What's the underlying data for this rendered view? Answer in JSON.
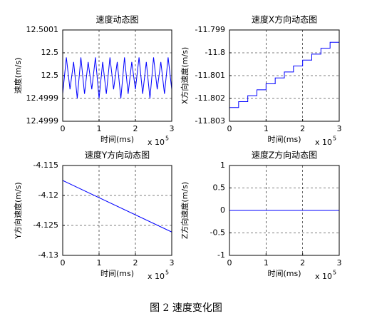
{
  "chart_data": [
    {
      "type": "line",
      "title": "速度动态图",
      "x_label": "时间(ms)",
      "y_label": "速度(m/s)",
      "x_scale_label": "x 10",
      "x_scale_exp": "5",
      "xlim": [
        0,
        3
      ],
      "xticks": [
        0,
        1,
        2,
        3
      ],
      "ylim": [
        12.4999,
        12.5001
      ],
      "yticks": [
        {
          "value": 12.4999,
          "label": "12.4999"
        },
        {
          "value": 12.49995,
          "label": "12.4999"
        },
        {
          "value": 12.5,
          "label": "12.5"
        },
        {
          "value": 12.50005,
          "label": "12.5"
        },
        12.5001
      ],
      "grid": true,
      "series": [
        {
          "color": "#0000ff",
          "x": [
            0,
            0.1,
            0.2,
            0.3,
            0.4,
            0.5,
            0.6,
            0.7,
            0.8,
            0.9,
            1,
            1.1,
            1.2,
            1.3,
            1.4,
            1.5,
            1.6,
            1.7,
            1.8,
            1.9,
            2,
            2.1,
            2.2,
            2.3,
            2.4,
            2.5,
            2.6,
            2.7,
            2.8,
            2.9,
            3
          ],
          "values": [
            12.49996,
            12.50004,
            12.49997,
            12.50003,
            12.49995,
            12.50004,
            12.49996,
            12.50003,
            12.49997,
            12.50004,
            12.49995,
            12.50003,
            12.49996,
            12.50004,
            12.49997,
            12.50003,
            12.49995,
            12.50004,
            12.49996,
            12.50003,
            12.49997,
            12.50004,
            12.49996,
            12.50003,
            12.49995,
            12.50004,
            12.49997,
            12.50003,
            12.49996,
            12.50004,
            12.49997
          ]
        }
      ]
    },
    {
      "type": "line",
      "title": "速度X方向动态图",
      "x_label": "时间(ms)",
      "y_label": "X方向速度(m/s)",
      "x_scale_label": "x 10",
      "x_scale_exp": "5",
      "xlim": [
        0,
        3
      ],
      "xticks": [
        0,
        1,
        2,
        3
      ],
      "ylim": [
        -11.803,
        -11.799
      ],
      "yticks": [
        -11.803,
        -11.802,
        -11.801,
        -11.8,
        -11.799
      ],
      "grid": true,
      "series": [
        {
          "color": "#0000ff",
          "x": [
            0,
            0.25,
            0.25,
            0.5,
            0.5,
            0.75,
            0.75,
            1,
            1,
            1.25,
            1.25,
            1.5,
            1.5,
            1.75,
            1.75,
            2,
            2,
            2.25,
            2.25,
            2.5,
            2.5,
            2.75,
            2.75,
            3
          ],
          "values": [
            -11.8024,
            -11.8024,
            -11.80214,
            -11.80214,
            -11.80188,
            -11.80188,
            -11.80162,
            -11.80162,
            -11.80136,
            -11.80136,
            -11.8011,
            -11.8011,
            -11.80084,
            -11.80084,
            -11.80058,
            -11.80058,
            -11.80032,
            -11.80032,
            -11.80006,
            -11.80006,
            -11.7998,
            -11.7998,
            -11.79954,
            -11.79954
          ]
        }
      ]
    },
    {
      "type": "line",
      "title": "速度Y方向动态图",
      "x_label": "时间(ms)",
      "y_label": "Y方向速度(m/s)",
      "x_scale_label": "x 10",
      "x_scale_exp": "5",
      "xlim": [
        0,
        3
      ],
      "xticks": [
        0,
        1,
        2,
        3
      ],
      "ylim": [
        -4.13,
        -4.115
      ],
      "yticks": [
        -4.13,
        -4.125,
        -4.12,
        -4.115
      ],
      "grid": true,
      "series": [
        {
          "color": "#0000ff",
          "x": [
            0,
            3
          ],
          "values": [
            -4.1175,
            -4.1261
          ]
        }
      ]
    },
    {
      "type": "line",
      "title": "速度Z方向动态图",
      "x_label": "时间(ms)",
      "y_label": "Z方向速度(m/s)",
      "x_scale_label": "x 10",
      "x_scale_exp": "5",
      "xlim": [
        0,
        3
      ],
      "xticks": [
        0,
        1,
        2,
        3
      ],
      "ylim": [
        -1,
        1
      ],
      "yticks": [
        -1,
        -0.5,
        0,
        0.5,
        1
      ],
      "grid": true,
      "series": [
        {
          "color": "#0000ff",
          "x": [
            0,
            3
          ],
          "values": [
            0,
            0
          ]
        }
      ]
    }
  ],
  "caption": "图 2 速度变化图"
}
